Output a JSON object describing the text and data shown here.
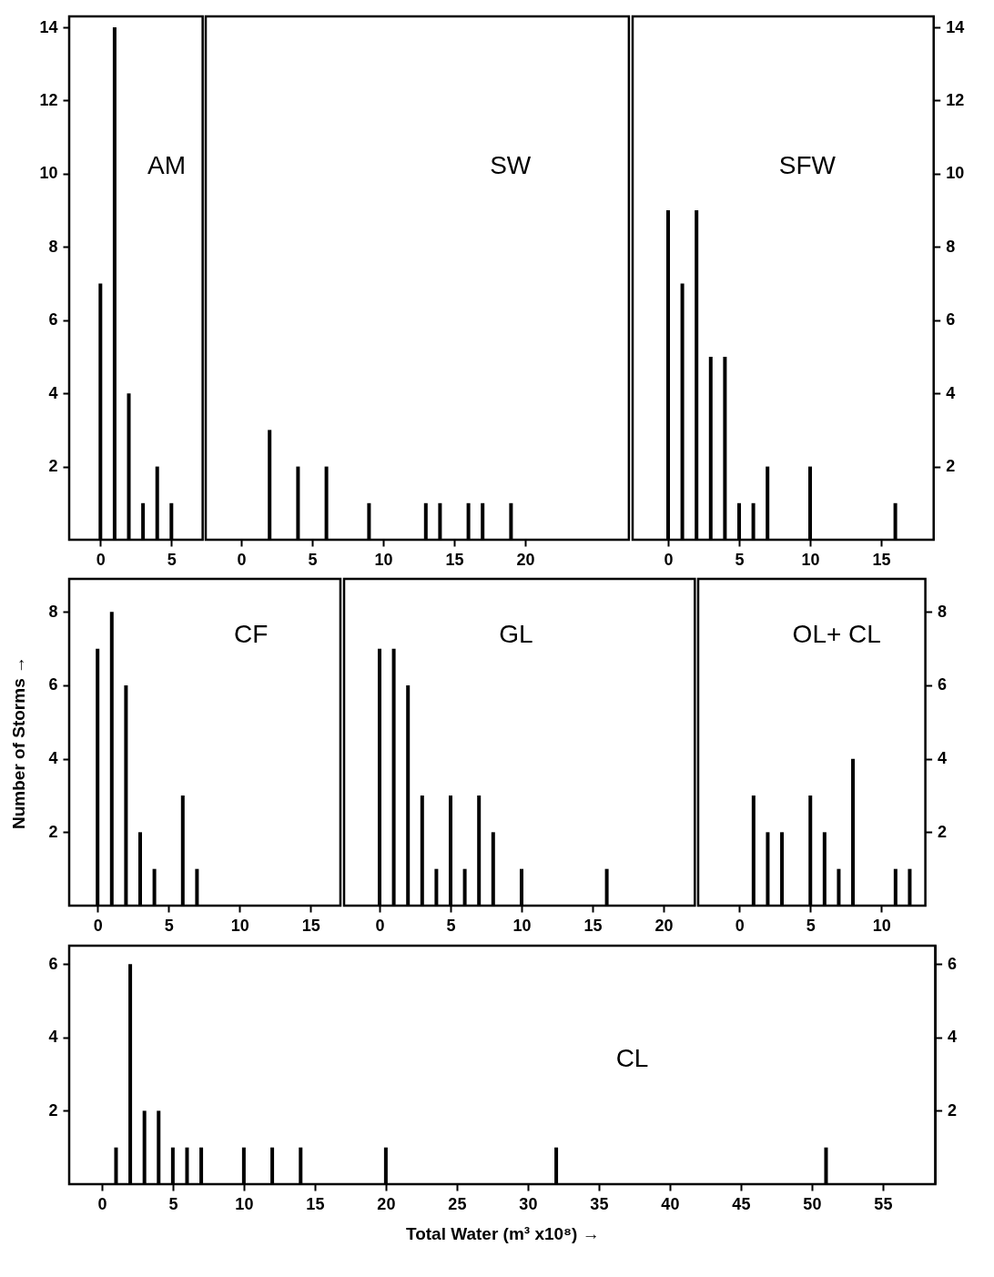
{
  "chart_data": [
    {
      "type": "bar",
      "title": "AM",
      "x": [
        0,
        1,
        2,
        3,
        4,
        5
      ],
      "values": [
        7,
        14,
        4,
        1,
        2,
        1
      ],
      "color": "#000000",
      "xlim": [
        -2.2,
        7.2
      ],
      "xticks": [
        0,
        5
      ],
      "ylim": [
        0,
        14.3
      ],
      "yticks": [
        2,
        4,
        6,
        8,
        10,
        12,
        14
      ]
    },
    {
      "type": "bar",
      "title": "SW",
      "x": [
        2,
        4,
        6,
        9,
        13,
        14,
        16,
        17,
        19
      ],
      "values": [
        3,
        2,
        2,
        1,
        1,
        1,
        1,
        1,
        1
      ],
      "color": "#000000",
      "xlim": [
        -2.5,
        27.3
      ],
      "xticks": [
        0,
        5,
        10,
        15,
        20
      ],
      "ylim": [
        0,
        14.3
      ],
      "yticks": [
        2,
        4,
        6,
        8,
        10,
        12,
        14
      ],
      "tick_labels": "x"
    },
    {
      "type": "bar",
      "title": "SFW",
      "x": [
        0,
        1,
        2,
        3,
        4,
        5,
        6,
        7,
        10,
        16
      ],
      "series": [
        {
          "color": "#000000",
          "axis": "y2",
          "values": [
            9,
            7,
            9,
            5,
            5,
            1,
            1,
            2,
            2,
            1
          ]
        }
      ],
      "xlim": [
        -2.5,
        18.7
      ],
      "xticks": [
        0,
        5,
        10,
        15
      ],
      "y2lim": [
        0,
        14.3
      ],
      "y2ticks": [
        2,
        4,
        6,
        8,
        10,
        12,
        14
      ]
    },
    {
      "type": "bar",
      "title": "CF",
      "ylabel": "Number of Storms →",
      "x": [
        0,
        1,
        2,
        3,
        4,
        6,
        7
      ],
      "values": [
        7,
        8,
        6,
        2,
        1,
        3,
        1
      ],
      "color": "#000000",
      "xlim": [
        -2,
        17.1
      ],
      "xticks": [
        0,
        5,
        10,
        15
      ],
      "ylim": [
        0,
        8.9
      ],
      "yticks": [
        2,
        4,
        6,
        8
      ]
    },
    {
      "type": "bar",
      "title": "GL",
      "x": [
        0,
        1,
        2,
        3,
        4,
        5,
        6,
        7,
        8,
        10,
        16
      ],
      "values": [
        7,
        7,
        6,
        3,
        1,
        3,
        1,
        3,
        2,
        1,
        1
      ],
      "color": "#000000",
      "xlim": [
        -2.5,
        22.2
      ],
      "xticks": [
        0,
        5,
        10,
        15,
        20
      ],
      "ylim": [
        0,
        8.9
      ],
      "yticks": [
        2,
        4,
        6,
        8
      ],
      "tick_labels": "x"
    },
    {
      "type": "bar",
      "title": "OL+ CL",
      "x": [
        1,
        2,
        3,
        5,
        6,
        7,
        8,
        11,
        12
      ],
      "series": [
        {
          "color": "#000000",
          "axis": "y2",
          "values": [
            3,
            2,
            2,
            3,
            2,
            1,
            4,
            1,
            1
          ]
        }
      ],
      "xlim": [
        -2.9,
        13.1
      ],
      "xticks": [
        0,
        5,
        10
      ],
      "y2lim": [
        0,
        8.9
      ],
      "y2ticks": [
        2,
        4,
        6,
        8
      ]
    },
    {
      "type": "bar",
      "title": "CL",
      "xlabel": "Total Water (m³ x10⁸) →",
      "x": [
        1,
        2,
        3,
        4,
        5,
        6,
        7,
        10,
        12,
        14,
        20,
        32,
        51
      ],
      "values": [
        1,
        6,
        2,
        2,
        1,
        1,
        1,
        1,
        1,
        1,
        1,
        1,
        1
      ],
      "color": "#000000",
      "xlim": [
        -2.3,
        58.7
      ],
      "xticks": [
        0,
        5,
        10,
        15,
        20,
        25,
        30,
        35,
        40,
        45,
        50,
        55
      ],
      "ylim": [
        0,
        6.5
      ],
      "yticks": [
        2,
        4,
        6
      ],
      "y2lim": [
        0,
        6.5
      ],
      "y2ticks": [
        2,
        4,
        6
      ]
    }
  ]
}
